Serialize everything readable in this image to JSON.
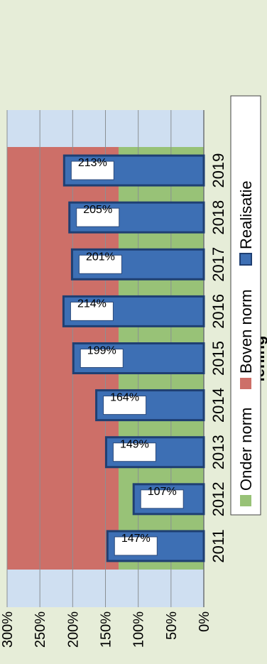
{
  "chart_data": {
    "type": "bar",
    "title": "lening",
    "categories": [
      "2011",
      "2012",
      "2013",
      "2014",
      "2015",
      "2016",
      "2017",
      "2018",
      "2019"
    ],
    "series": [
      {
        "name": "Realisatie",
        "values": [
          147,
          107,
          149,
          164,
          199,
          214,
          201,
          205,
          213
        ],
        "color": "#3d6fb4"
      }
    ],
    "data_labels": [
      "147%",
      "107%",
      "149%",
      "164%",
      "199%",
      "214%",
      "201%",
      "205%",
      "213%"
    ],
    "norm_bands": [
      {
        "name": "Onder norm",
        "from": 0,
        "to": 130,
        "color": "#98c277"
      },
      {
        "name": "Boven norm",
        "from": 130,
        "to": 300,
        "color": "#cd6f68"
      }
    ],
    "ylim": [
      0,
      300
    ],
    "yticks": [
      "0%",
      "50%",
      "100%",
      "150%",
      "200%",
      "250%",
      "300%"
    ],
    "xlabel": "",
    "ylabel": "",
    "grid": true,
    "legend": {
      "position": "bottom",
      "items": [
        {
          "label": "Onder norm",
          "color": "#98c277"
        },
        {
          "label": "Boven norm",
          "color": "#cd6f68"
        },
        {
          "label": "Realisatie",
          "color": "#3d6fb4"
        }
      ]
    }
  }
}
